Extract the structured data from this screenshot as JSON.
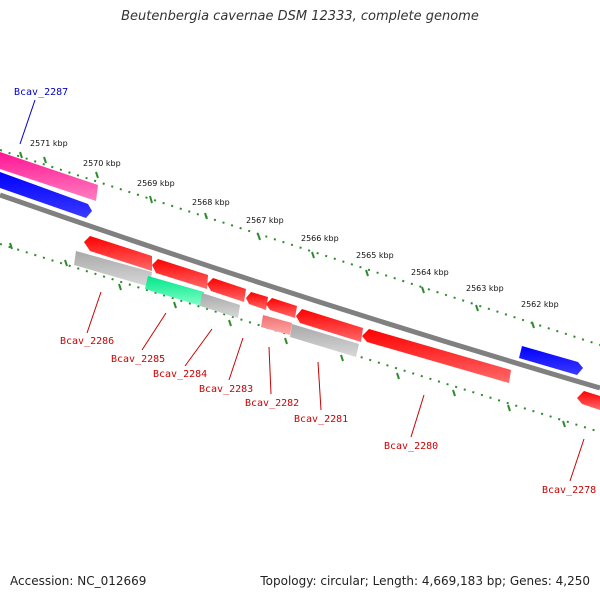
{
  "title": "Beutenbergia cavernae DSM 12333, complete genome",
  "footer": {
    "accession": "Accession: NC_012669",
    "topology": "Topology: circular; Length: 4,669,183 bp; Genes: 4,250"
  },
  "colors": {
    "backbone": "#808080",
    "tick": "#2e8b2e",
    "plus_label": "#0000cc",
    "minus_label": "#cc0000"
  },
  "ticks": [
    "2571 kbp",
    "2570 kbp",
    "2569 kbp",
    "2568 kbp",
    "2567 kbp",
    "2566 kbp",
    "2565 kbp",
    "2564 kbp",
    "2563 kbp",
    "2562 kbp"
  ],
  "genes": [
    {
      "name": "Bcav_2287",
      "color": "#ff1493",
      "strand": "+"
    },
    {
      "name": "Bcav_2286",
      "color": "#ff0000",
      "strand": "-"
    },
    {
      "name": "Bcav_2285",
      "color": "#b0b0b0",
      "strand": "-"
    },
    {
      "name": "Bcav_2284",
      "color": "#00e68a",
      "strand": "-"
    },
    {
      "name": "Bcav_2283",
      "color": "#b0b0b0",
      "strand": "-"
    },
    {
      "name": "Bcav_2282",
      "color": "#f07070",
      "strand": "-"
    },
    {
      "name": "Bcav_2281",
      "color": "#b0b0b0",
      "strand": "-"
    },
    {
      "name": "Bcav_2280",
      "color": "#ff0000",
      "strand": "-"
    },
    {
      "name": "Bcav_2278",
      "color": "#ff0000",
      "strand": "-"
    }
  ]
}
